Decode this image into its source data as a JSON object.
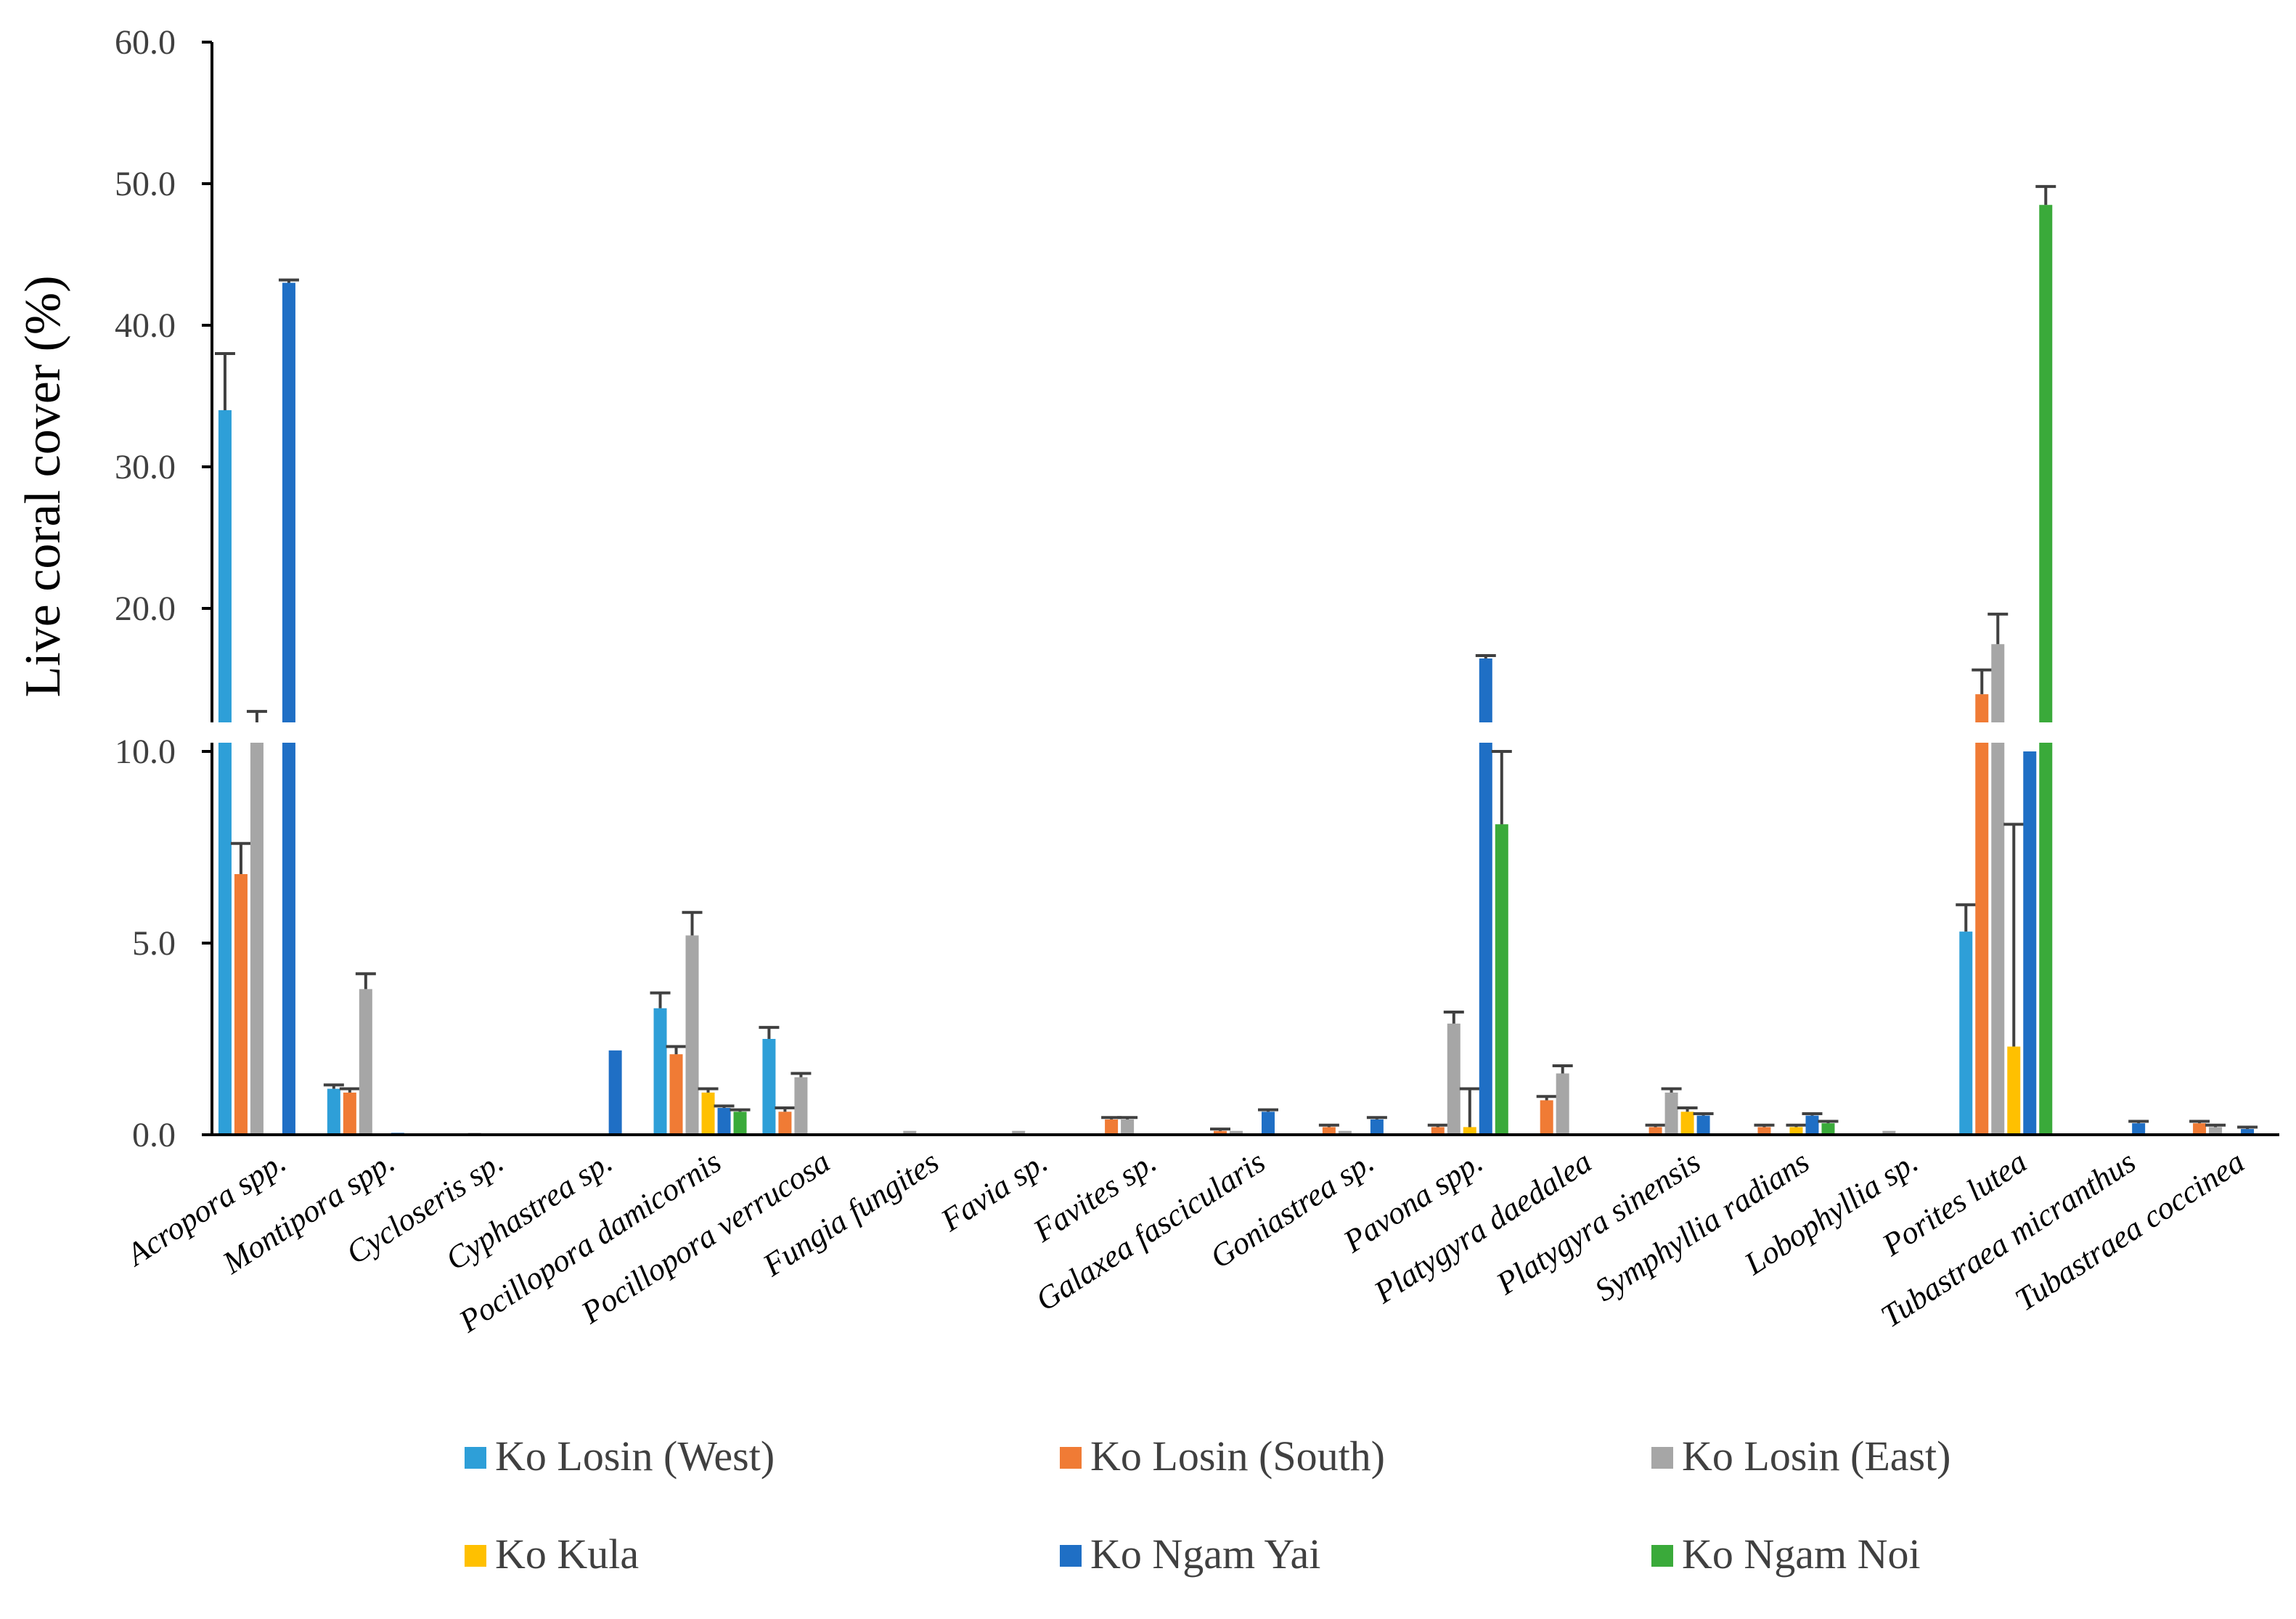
{
  "chart_data": {
    "type": "bar",
    "title": "",
    "xlabel": "",
    "ylabel": "Live coral cover (%)",
    "ylim": [
      0,
      60
    ],
    "y_axis_break": [
      10,
      20
    ],
    "yticks_lower": [
      "0.0",
      "5.0",
      "10.0"
    ],
    "yticks_upper": [
      "20.0",
      "30.0",
      "40.0",
      "50.0",
      "60.0"
    ],
    "legend_position": "bottom",
    "categories": [
      "Acropora spp.",
      "Montipora spp.",
      "Cycloseris sp.",
      "Cyphastrea sp.",
      "Pocillopora damicornis",
      "Pocillopora verrucosa",
      "Fungia fungites",
      "Favia sp.",
      "Favites sp.",
      "Galaxea fascicularis",
      "Goniastrea sp.",
      "Pavona spp.",
      "Platygyra daedalea",
      "Platygyra sinensis",
      "Symphyllia radians",
      "Lobophyllia sp.",
      "Porites lutea",
      "Tubastraea micranthus",
      "Tubastraea coccinea"
    ],
    "series": [
      {
        "name": "Ko Losin (West)",
        "color": "#2E9FD8",
        "values": [
          34.0,
          1.2,
          0,
          0,
          3.3,
          2.5,
          0,
          0,
          0,
          0,
          0,
          0,
          0,
          0,
          0,
          0,
          5.3,
          0,
          0
        ],
        "errors": [
          4.0,
          0.1,
          0,
          0,
          0.4,
          0.3,
          0,
          0,
          0,
          0,
          0,
          0,
          0,
          0,
          0,
          0,
          0.7,
          0,
          0
        ]
      },
      {
        "name": "Ko Losin (South)",
        "color": "#F07B35",
        "values": [
          6.8,
          1.1,
          0,
          0,
          2.1,
          0.6,
          0,
          0,
          0.4,
          0.1,
          0.2,
          0.2,
          0.9,
          0.2,
          0.2,
          0,
          14.0,
          0,
          0.3
        ],
        "errors": [
          0.8,
          0.1,
          0,
          0,
          0.2,
          0.1,
          0,
          0,
          0.05,
          0.05,
          0.05,
          0.05,
          0.1,
          0.05,
          0.05,
          0,
          1.7,
          0,
          0.05
        ]
      },
      {
        "name": "Ko Losin (East)",
        "color": "#A6A6A6",
        "values": [
          11.5,
          3.8,
          0.05,
          0,
          5.2,
          1.5,
          0.1,
          0.1,
          0.4,
          0.1,
          0.1,
          2.9,
          1.6,
          1.1,
          0,
          0.1,
          17.5,
          0,
          0.2
        ],
        "errors": [
          1.3,
          0.4,
          0,
          0,
          0.6,
          0.1,
          0,
          0,
          0.05,
          0,
          0,
          0.3,
          0.2,
          0.1,
          0,
          0,
          2.1,
          0,
          0.05
        ]
      },
      {
        "name": "Ko Kula",
        "color": "#FFC000",
        "values": [
          0,
          0,
          0,
          0,
          1.1,
          0,
          0,
          0,
          0,
          0,
          0,
          0.2,
          0,
          0.6,
          0.2,
          0,
          2.3,
          0,
          0
        ],
        "errors": [
          0,
          0,
          0,
          0,
          0.1,
          0,
          0,
          0,
          0,
          0,
          0,
          1.0,
          0,
          0.1,
          0.05,
          0,
          5.8,
          0,
          0
        ]
      },
      {
        "name": "Ko Ngam Yai",
        "color": "#1F6FC5",
        "values": [
          43.0,
          0.05,
          0,
          2.2,
          0.7,
          0,
          0,
          0,
          0,
          0.6,
          0.4,
          16.5,
          0,
          0.5,
          0.5,
          0,
          10.0,
          0.3,
          0.15
        ],
        "errors": [
          0.2,
          0,
          0,
          0,
          0.05,
          0,
          0,
          0,
          0,
          0.05,
          0.05,
          0.2,
          0,
          0.05,
          0.05,
          0,
          0,
          0.05,
          0.05
        ]
      },
      {
        "name": "Ko Ngam Noi",
        "color": "#3AAA3A",
        "values": [
          0,
          0,
          0,
          0,
          0.6,
          0,
          0,
          0,
          0,
          0,
          0,
          8.1,
          0,
          0,
          0.3,
          0,
          48.5,
          0,
          0
        ],
        "errors": [
          0,
          0,
          0,
          0,
          0.05,
          0,
          0,
          0,
          0,
          0,
          0,
          1.9,
          0,
          0,
          0.05,
          0,
          1.3,
          0,
          0
        ]
      }
    ]
  }
}
